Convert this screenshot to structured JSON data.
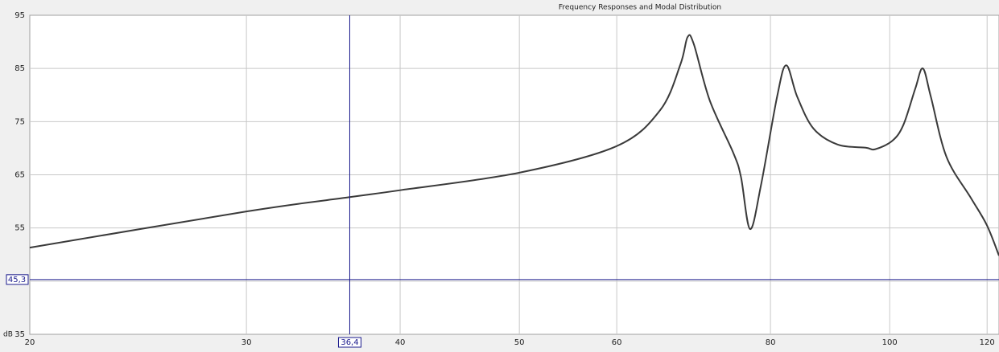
{
  "chart_data": {
    "type": "line",
    "title": "Frequency Responses and Modal Distribution",
    "log_x": true,
    "grid": true,
    "y_unit": "dB",
    "xlim": [
      20,
      122.7
    ],
    "ylim": [
      35,
      95
    ],
    "xticks": [
      20,
      30,
      40,
      50,
      60,
      80,
      100,
      120
    ],
    "yticks": [
      35,
      45,
      55,
      65,
      75,
      85,
      95
    ],
    "x": [
      20,
      30,
      36.4,
      40,
      50,
      60,
      65.1,
      67.6,
      68.5,
      69.3,
      71.4,
      74.6,
      75.7,
      77.0,
      78.6,
      81.0,
      82.4,
      84.1,
      86.7,
      90.7,
      95.6,
      97.3,
      100.5,
      102.6,
      104.9,
      106.4,
      108.0,
      111.2,
      116.3,
      119.9,
      122.7
    ],
    "series": [
      {
        "color": "#3a3a3a",
        "values": [
          51.3,
          58.1,
          60.8,
          62.1,
          65.4,
          70.4,
          77.2,
          85.8,
          90.9,
          89.6,
          79.0,
          69.2,
          64.6,
          54.8,
          63.1,
          79.7,
          85.6,
          79.7,
          73.7,
          70.7,
          70.1,
          69.8,
          71.4,
          74.4,
          81.2,
          85.0,
          79.7,
          68.4,
          60.8,
          55.6,
          49.8
        ]
      }
    ],
    "cursor": {
      "color": "#1a1a8c",
      "x": {
        "value": 36.4,
        "label": "36,4"
      },
      "y": {
        "value": 45.3,
        "label": "45,3"
      }
    }
  }
}
